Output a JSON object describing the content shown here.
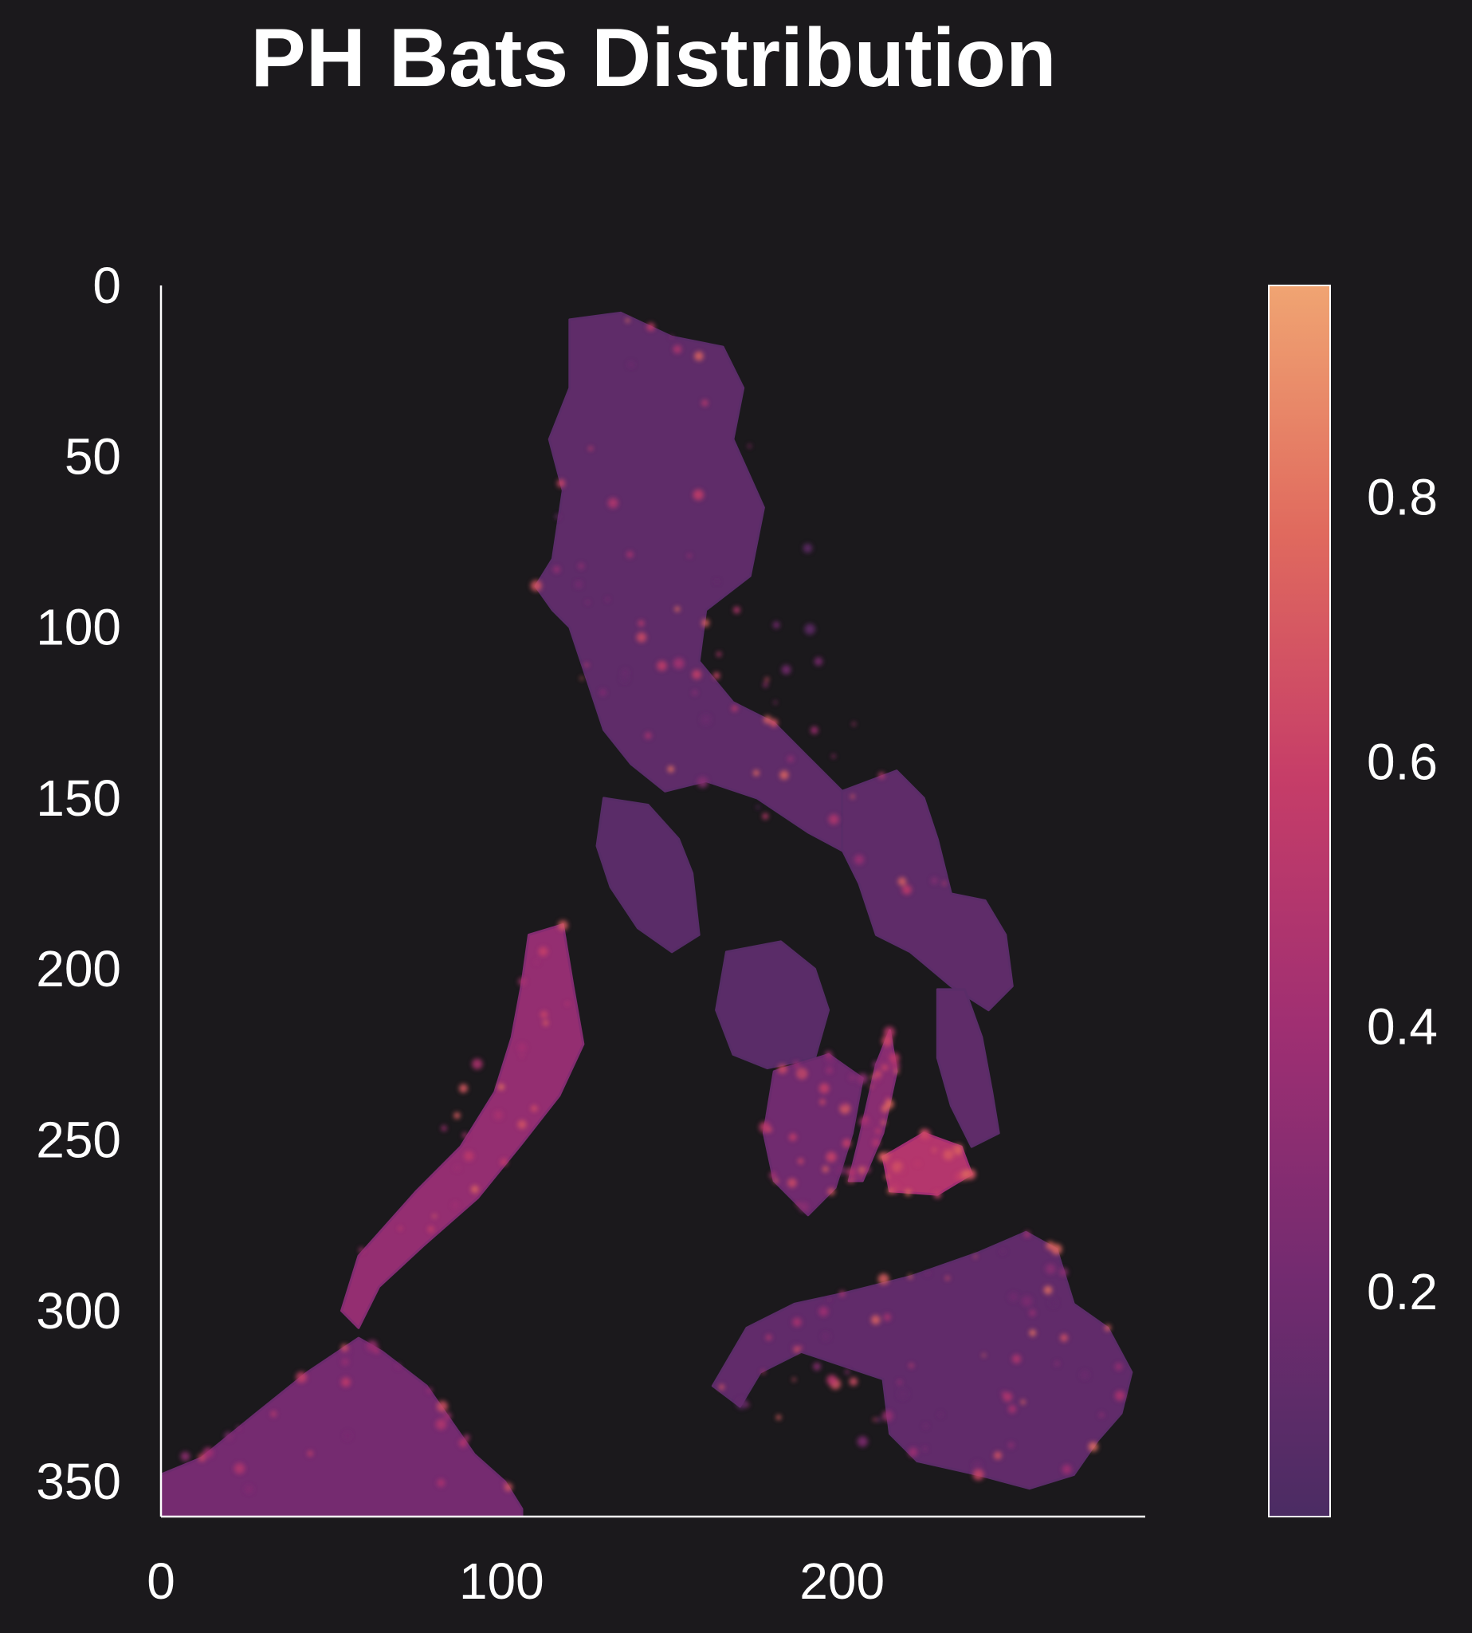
{
  "chart_data": {
    "type": "heatmap",
    "title": "PH Bats Distribution",
    "xlabel": "",
    "ylabel": "",
    "xlim": [
      0,
      289
    ],
    "ylim": [
      360,
      0
    ],
    "x_ticks": [
      0,
      100,
      200
    ],
    "y_ticks": [
      0,
      50,
      100,
      150,
      200,
      250,
      300,
      350
    ],
    "colorbar": {
      "range": [
        0.03,
        0.96
      ],
      "ticks": [
        0.2,
        0.4,
        0.6,
        0.8
      ],
      "colormap": "flare",
      "colors": [
        "#4b2c63",
        "#742b70",
        "#a02f72",
        "#c63d68",
        "#e06a5e",
        "#f0a472"
      ]
    },
    "background_color": "#1b191c",
    "grid": false,
    "regions": [
      {
        "name": "Luzon",
        "intensity": 0.12,
        "hotspot_intensity": 0.8
      },
      {
        "name": "Mindoro",
        "intensity": 0.1
      },
      {
        "name": "Palawan",
        "intensity": 0.35,
        "hotspot_intensity": 0.85
      },
      {
        "name": "Samar",
        "intensity": 0.12
      },
      {
        "name": "Panay",
        "intensity": 0.1
      },
      {
        "name": "Negros",
        "intensity": 0.2,
        "hotspot_intensity": 0.75
      },
      {
        "name": "Cebu",
        "intensity": 0.3,
        "hotspot_intensity": 0.8
      },
      {
        "name": "Bohol",
        "intensity": 0.5,
        "hotspot_intensity": 0.85
      },
      {
        "name": "Leyte",
        "intensity": 0.12
      },
      {
        "name": "Mindanao",
        "intensity": 0.13,
        "hotspot_intensity": 0.8
      },
      {
        "name": "Borneo",
        "intensity": 0.22,
        "hotspot_intensity": 0.7
      }
    ]
  }
}
